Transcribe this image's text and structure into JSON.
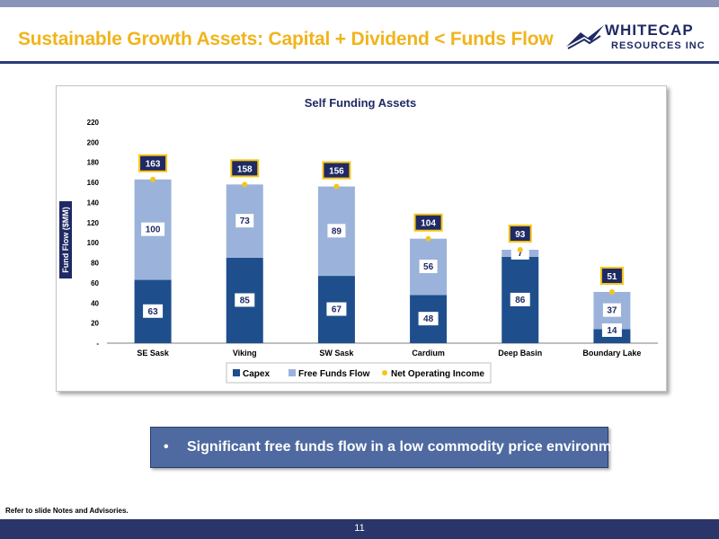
{
  "header": {
    "title": "Sustainable Growth Assets:  Capital + Dividend < Funds Flow",
    "logo_line1": "WHITECAP",
    "logo_line2": "RESOURCES INC"
  },
  "colors": {
    "title_gold": "#f0b41c",
    "capex": "#1f4e8c",
    "free_funds_flow": "#9bb3db",
    "net_operating_income": "#f5c518",
    "navy": "#1f2a64"
  },
  "chart_data": {
    "type": "bar",
    "stacked": true,
    "title": "Self Funding Assets",
    "ylabel": "Fund Flow ($MM)",
    "xlabel": "",
    "ylim": [
      0,
      220
    ],
    "yticks": [
      "-",
      "20",
      "40",
      "60",
      "80",
      "100",
      "120",
      "140",
      "160",
      "180",
      "200",
      "220"
    ],
    "categories": [
      "SE Sask",
      "Viking",
      "SW Sask",
      "Cardium",
      "Deep Basin",
      "Boundary Lake"
    ],
    "series": [
      {
        "name": "Capex",
        "values": [
          63,
          85,
          67,
          48,
          86,
          14
        ],
        "labels": [
          "63",
          "85",
          "67",
          "48",
          "86",
          "14"
        ]
      },
      {
        "name": "Free Funds Flow",
        "values": [
          100,
          73,
          89,
          56,
          7,
          37
        ],
        "labels": [
          "100",
          "73",
          "89",
          "56",
          "7",
          "37"
        ]
      }
    ],
    "net_operating_income": {
      "name": "Net Operating Income",
      "values": [
        163,
        158,
        156,
        104,
        93,
        51
      ],
      "labels": [
        "163",
        "158",
        "156",
        "104",
        "93",
        "51"
      ]
    },
    "legend_position": "bottom",
    "grid": false
  },
  "callout": {
    "bullet": "•",
    "text": "Significant free funds flow in a low commodity price environment"
  },
  "footnote": "Refer to slide Notes and Advisories.",
  "footer": {
    "page_number": "11"
  }
}
